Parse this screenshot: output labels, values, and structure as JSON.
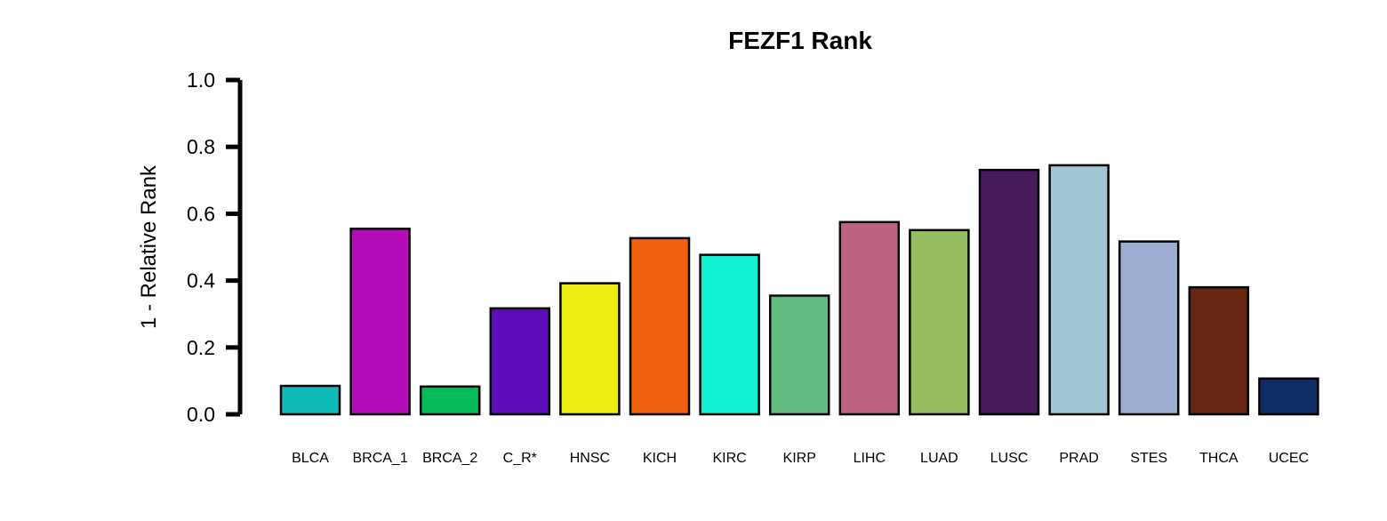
{
  "chart_data": {
    "type": "bar",
    "title": "FEZF1 Rank",
    "xlabel": "",
    "ylabel": "1 - Relative Rank",
    "ylim": [
      0,
      1
    ],
    "yticks": [
      "0.0",
      "0.2",
      "0.4",
      "0.6",
      "0.8",
      "1.0"
    ],
    "grid": false,
    "legend": "none",
    "categories": [
      "BLCA",
      "BRCA_1",
      "BRCA_2",
      "C_R*",
      "HNSC",
      "KICH",
      "KIRC",
      "KIRP",
      "LIHC",
      "LUAD",
      "LUSC",
      "PRAD",
      "STES",
      "THCA",
      "UCEC"
    ],
    "values": [
      0.085,
      0.555,
      0.083,
      0.317,
      0.392,
      0.527,
      0.477,
      0.355,
      0.575,
      0.551,
      0.731,
      0.745,
      0.517,
      0.38,
      0.107
    ],
    "colors": [
      "#0fbbb7",
      "#b50cba",
      "#05ba5b",
      "#5e0bba",
      "#eeee10",
      "#f26110",
      "#0ff1d1",
      "#61bc81",
      "#bd6282",
      "#97bc60",
      "#481b5d",
      "#a0c6d4",
      "#9eaed2",
      "#672611",
      "#0f2d66"
    ]
  }
}
